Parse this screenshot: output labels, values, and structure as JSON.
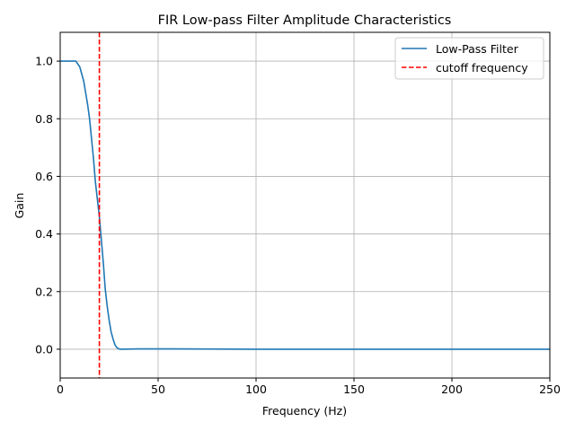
{
  "chart_data": {
    "type": "line",
    "title": "FIR Low-pass Filter Amplitude Characteristics",
    "xlabel": "Frequency (Hz)",
    "ylabel": "Gain",
    "xlim": [
      0,
      250
    ],
    "ylim": [
      -0.1,
      1.1
    ],
    "xticks": [
      0,
      50,
      100,
      150,
      200,
      250
    ],
    "yticks": [
      0.0,
      0.2,
      0.4,
      0.6,
      0.8,
      1.0
    ],
    "xtick_labels": [
      "0",
      "50",
      "100",
      "150",
      "200",
      "250"
    ],
    "ytick_labels": [
      "0.0",
      "0.2",
      "0.4",
      "0.6",
      "0.8",
      "1.0"
    ],
    "grid": true,
    "legend_position": "top-right",
    "series": [
      {
        "name": "Low-Pass Filter",
        "color": "#1f77b4",
        "style": "solid",
        "x": [
          0,
          3,
          6,
          8,
          10,
          12,
          14,
          15,
          16,
          17,
          18,
          19,
          20,
          21,
          22,
          23,
          24,
          25,
          26,
          27,
          28,
          29,
          30,
          31,
          40,
          60,
          100,
          150,
          200,
          250
        ],
        "y": [
          1.0,
          1.0,
          1.0,
          1.0,
          0.98,
          0.93,
          0.85,
          0.8,
          0.73,
          0.66,
          0.58,
          0.52,
          0.46,
          0.38,
          0.3,
          0.21,
          0.15,
          0.1,
          0.06,
          0.035,
          0.015,
          0.005,
          0.001,
          0.0,
          0.001,
          0.001,
          0.0,
          0.0,
          0.0,
          0.0
        ]
      },
      {
        "name": "cutoff frequency",
        "color": "#ff0000",
        "style": "dashed",
        "vertical_line_x": 20
      }
    ]
  }
}
